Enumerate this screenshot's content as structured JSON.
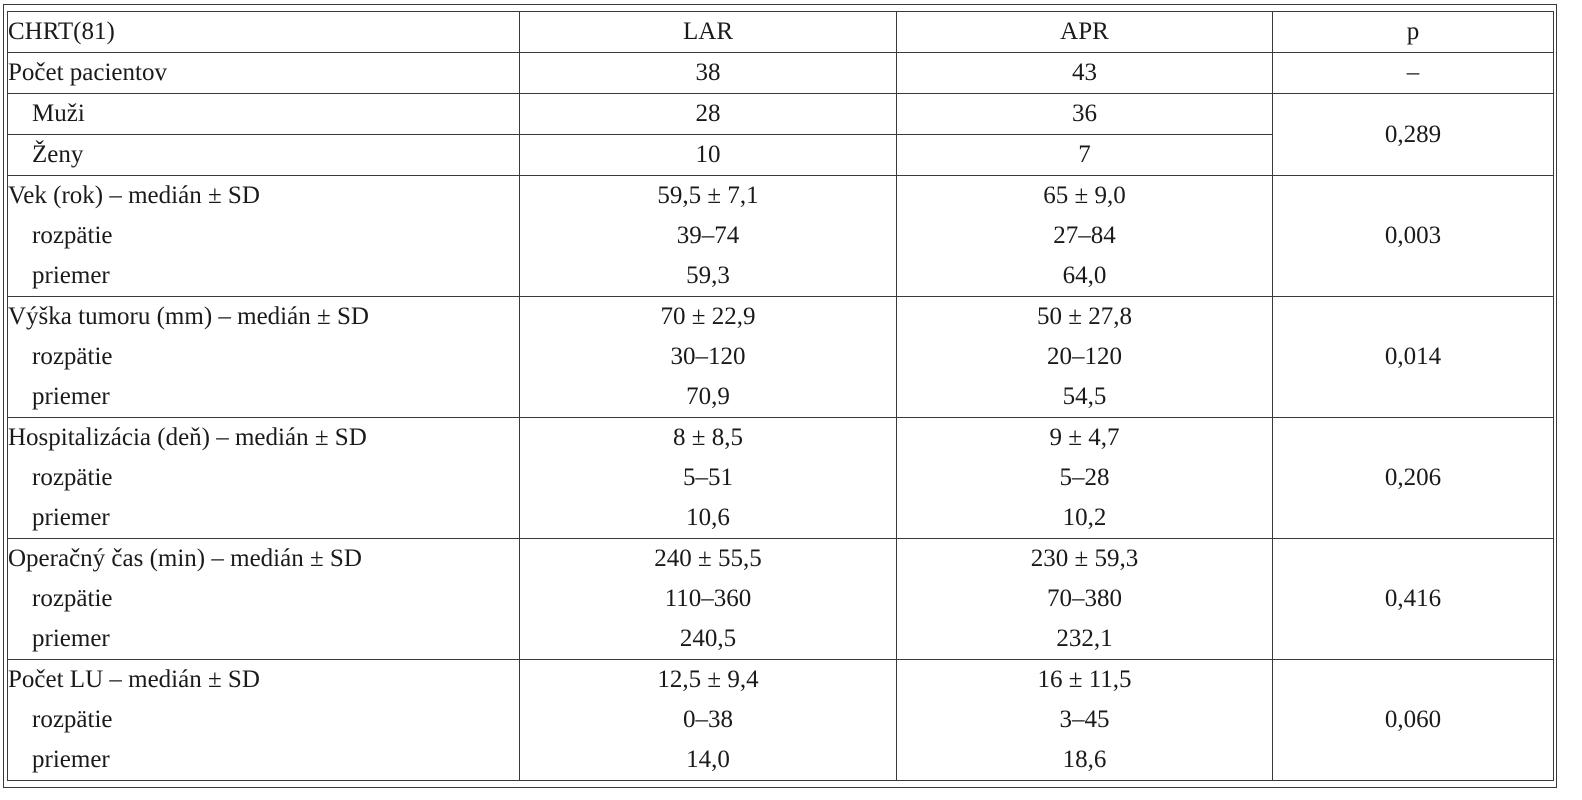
{
  "table": {
    "headers": [
      "CHRT(81)",
      "LAR",
      "APR",
      "p"
    ],
    "count_row": {
      "label": "Počet pacientov",
      "lar": "38",
      "apr": "43",
      "p": "–"
    },
    "sex_rows": [
      {
        "label": "Muži",
        "lar": "28",
        "apr": "36"
      },
      {
        "label": "Ženy",
        "lar": "10",
        "apr": "7"
      }
    ],
    "sex_p": "0,289",
    "groups": [
      {
        "label": "Vek (rok) – medián ± SD",
        "lar": "59,5 ± 7,1",
        "apr": "65 ± 9,0",
        "range_label": "rozpätie",
        "range_lar": "39–74",
        "range_apr": "27–84",
        "mean_label": "priemer",
        "mean_lar": "59,3",
        "mean_apr": "64,0",
        "p": "0,003"
      },
      {
        "label": "Výška tumoru (mm) – medián ± SD",
        "lar": "70 ± 22,9",
        "apr": "50 ± 27,8",
        "range_label": "rozpätie",
        "range_lar": "30–120",
        "range_apr": "20–120",
        "mean_label": "priemer",
        "mean_lar": "70,9",
        "mean_apr": "54,5",
        "p": "0,014"
      },
      {
        "label": "Hospitalizácia (deň) – medián ± SD",
        "lar": "8 ± 8,5",
        "apr": "9 ± 4,7",
        "range_label": "rozpätie",
        "range_lar": "5–51",
        "range_apr": "5–28",
        "mean_label": "priemer",
        "mean_lar": "10,6",
        "mean_apr": "10,2",
        "p": "0,206"
      },
      {
        "label": "Operačný čas (min) – medián ± SD",
        "lar": "240 ± 55,5",
        "apr": "230 ± 59,3",
        "range_label": "rozpätie",
        "range_lar": "110–360",
        "range_apr": "70–380",
        "mean_label": "priemer",
        "mean_lar": "240,5",
        "mean_apr": "232,1",
        "p": "0,416"
      },
      {
        "label": "Počet LU – medián ± SD",
        "lar": "12,5 ± 9,4",
        "apr": "16 ± 11,5",
        "range_label": "rozpätie",
        "range_lar": "0–38",
        "range_apr": "3–45",
        "mean_label": "priemer",
        "mean_lar": "14,0",
        "mean_apr": "18,6",
        "p": "0,060"
      }
    ]
  }
}
